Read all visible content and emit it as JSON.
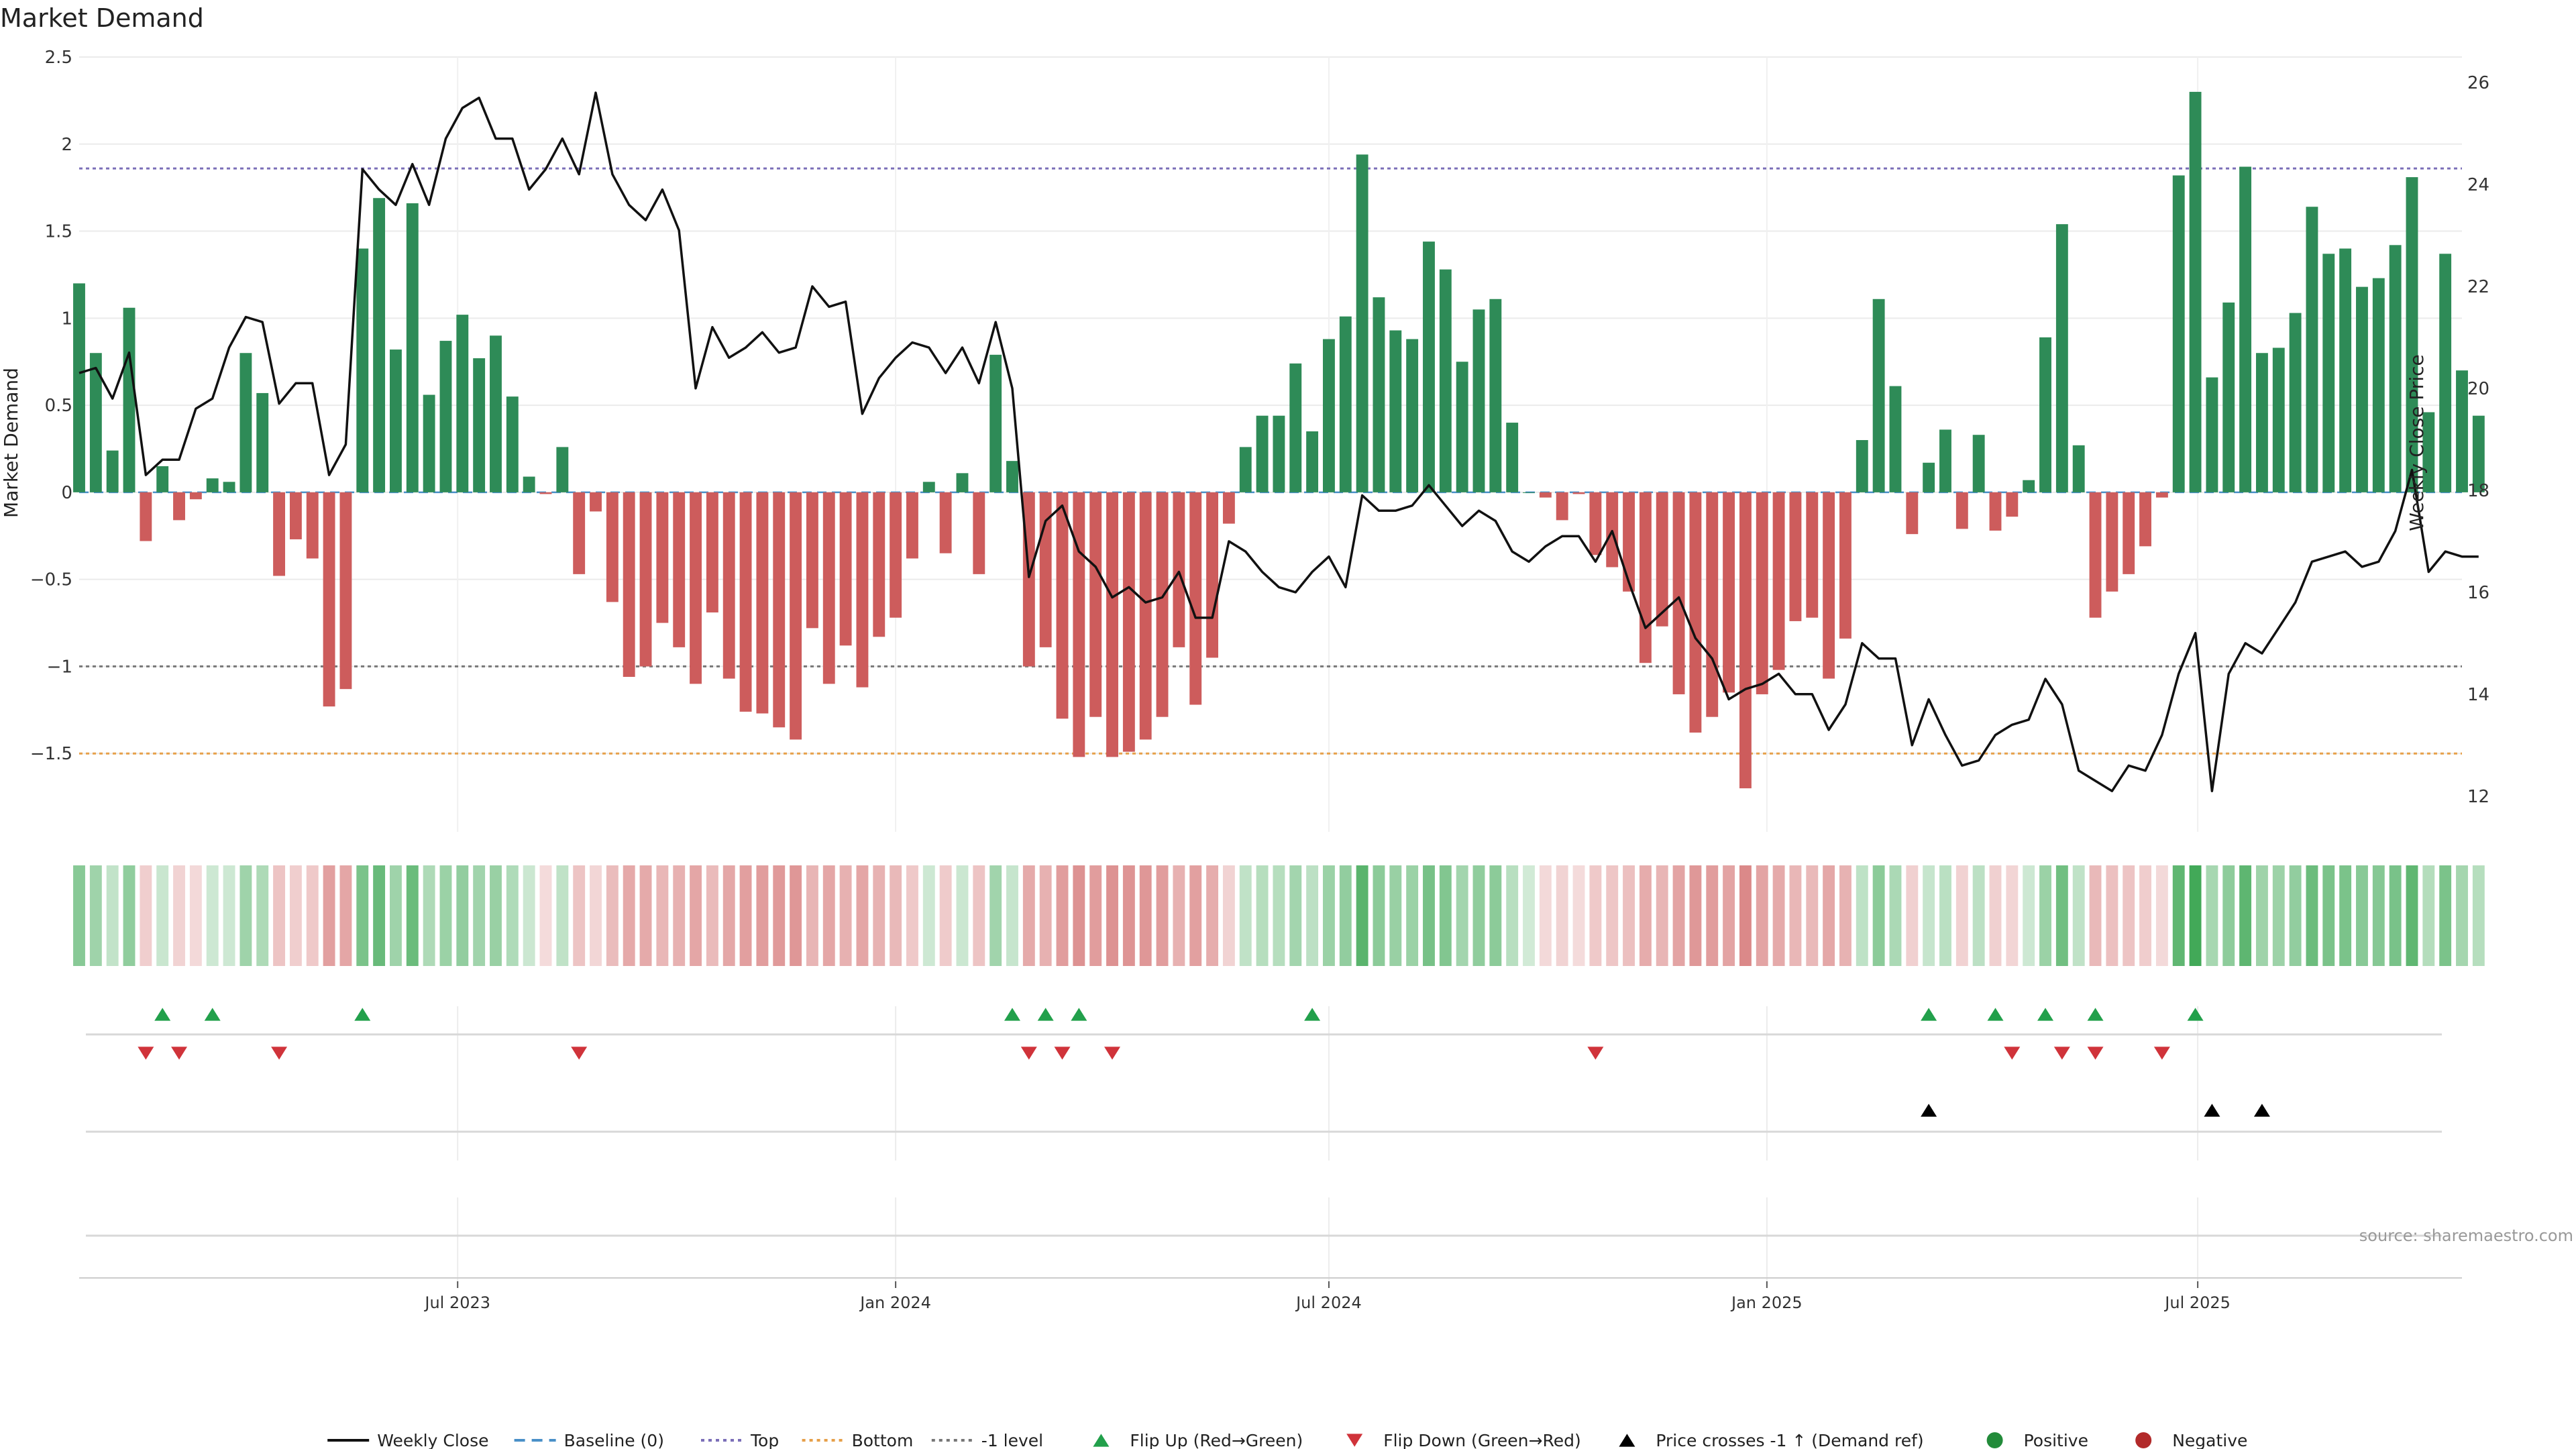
{
  "chart_data": {
    "type": "bar",
    "title": "Market Demand",
    "ylabel": "Market Demand",
    "y2label": "Weekly Close Price",
    "ylim": [
      -1.95,
      2.5
    ],
    "y2lim": [
      11.3,
      26.5
    ],
    "yticks": [
      2.5,
      2,
      1.5,
      1,
      0.5,
      0,
      -0.5,
      -1,
      -1.5
    ],
    "ytick_labels": [
      "2.5",
      "2",
      "1.5",
      "1",
      "0.5",
      "0",
      "−0.5",
      "−1",
      "−1.5"
    ],
    "y2ticks": [
      26,
      24,
      22,
      20,
      18,
      16,
      14,
      12
    ],
    "date_range": [
      "2023-01-23",
      "2025-10-20"
    ],
    "date_ticks": [
      {
        "date": "2023-07-01",
        "label": "Jul 2023"
      },
      {
        "date": "2024-01-01",
        "label": "Jan 2024"
      },
      {
        "date": "2024-07-01",
        "label": "Jul 2024"
      },
      {
        "date": "2025-01-01",
        "label": "Jan 2025"
      },
      {
        "date": "2025-07-01",
        "label": "Jul 2025"
      }
    ],
    "reference_lines": [
      {
        "name": "Top",
        "value": 1.86,
        "color": "#7b6fb8"
      },
      {
        "name": "Bottom",
        "value": -1.5,
        "color": "#e6a04a"
      },
      {
        "name": "-1 level",
        "value": -1.0,
        "color": "#777777"
      }
    ],
    "colors": {
      "positive": "#2e8b57",
      "negative": "#cd5c5c",
      "price": "#111111",
      "baseline": "#4a90c8",
      "flip_up": "#22a04b",
      "flip_down": "#d0333a",
      "cross": "#000000"
    },
    "weeks": {
      "start": "2023-01-23",
      "interval_days": 7,
      "demand": [
        1.2,
        0.8,
        0.24,
        1.06,
        -0.28,
        0.15,
        -0.16,
        -0.04,
        0.08,
        0.06,
        0.8,
        0.57,
        -0.48,
        -0.27,
        -0.38,
        -1.23,
        -1.13,
        1.4,
        1.69,
        0.82,
        1.66,
        0.56,
        0.87,
        1.02,
        0.77,
        0.9,
        0.55,
        0.09,
        -0.01,
        0.26,
        -0.47,
        -0.11,
        -0.63,
        -1.06,
        -1.0,
        -0.75,
        -0.89,
        -1.1,
        -0.69,
        -1.07,
        -1.26,
        -1.27,
        -1.35,
        -1.42,
        -0.78,
        -1.1,
        -0.88,
        -1.12,
        -0.83,
        -0.72,
        -0.38,
        0.06,
        -0.35,
        0.11,
        -0.47,
        0.79,
        0.18,
        -1.0,
        -0.89,
        -1.3,
        -1.52,
        -1.29,
        -1.52,
        -1.49,
        -1.42,
        -1.29,
        -0.89,
        -1.22,
        -0.95,
        -0.18,
        0.26,
        0.44,
        0.44,
        0.74,
        0.35,
        0.88,
        1.01,
        1.94,
        1.12,
        0.93,
        0.88,
        1.44,
        1.28,
        0.75,
        1.05,
        1.11,
        0.4,
        0.0,
        -0.03,
        -0.16,
        -0.01,
        -0.36,
        -0.43,
        -0.57,
        -0.98,
        -0.77,
        -1.16,
        -1.38,
        -1.29,
        -1.15,
        -1.7,
        -1.16,
        -1.02,
        -0.74,
        -0.72,
        -1.07,
        -0.84,
        0.3,
        1.11,
        0.61,
        -0.24,
        0.17,
        0.36,
        -0.21,
        0.33,
        -0.22,
        -0.14,
        0.07,
        0.89,
        1.54,
        0.27,
        -0.72,
        -0.57,
        -0.47,
        -0.31,
        -0.03,
        1.82,
        2.3,
        0.66,
        1.09,
        1.87,
        0.8,
        0.83,
        1.03,
        1.64,
        1.37,
        1.4,
        1.18,
        1.23,
        1.42,
        1.81,
        0.46,
        1.37,
        0.7,
        0.44
      ],
      "close": [
        20.3,
        20.4,
        19.8,
        20.7,
        18.3,
        18.6,
        18.6,
        19.6,
        19.8,
        20.8,
        21.4,
        21.3,
        19.7,
        20.1,
        20.1,
        18.3,
        18.9,
        24.3,
        23.9,
        23.6,
        24.4,
        23.6,
        24.9,
        25.5,
        25.7,
        24.9,
        24.9,
        23.9,
        24.3,
        24.9,
        24.2,
        25.8,
        24.2,
        23.6,
        23.3,
        23.9,
        23.1,
        20.0,
        21.2,
        20.6,
        20.8,
        21.1,
        20.7,
        20.8,
        22.0,
        21.6,
        21.7,
        19.5,
        20.2,
        20.6,
        20.9,
        20.8,
        20.3,
        20.8,
        20.1,
        21.3,
        20.0,
        16.3,
        17.4,
        17.7,
        16.8,
        16.5,
        15.9,
        16.1,
        15.8,
        15.9,
        16.4,
        15.5,
        15.5,
        17.0,
        16.8,
        16.4,
        16.1,
        16.0,
        16.4,
        16.7,
        16.1,
        17.9,
        17.6,
        17.6,
        17.7,
        18.1,
        17.7,
        17.3,
        17.6,
        17.4,
        16.8,
        16.6,
        16.9,
        17.1,
        17.1,
        16.6,
        17.2,
        16.2,
        15.3,
        15.6,
        15.9,
        15.1,
        14.7,
        13.9,
        14.1,
        14.2,
        14.4,
        14.0,
        14.0,
        13.3,
        13.8,
        15.0,
        14.7,
        14.7,
        13.0,
        13.9,
        13.2,
        12.6,
        12.7,
        13.2,
        13.4,
        13.5,
        14.3,
        13.8,
        12.5,
        12.3,
        12.1,
        12.6,
        12.5,
        13.2,
        14.4,
        15.2,
        12.1,
        14.4,
        15.0,
        14.8,
        15.3,
        15.8,
        16.6,
        16.7,
        16.8,
        16.5,
        16.6,
        17.2,
        18.4,
        16.4,
        16.8,
        16.7,
        16.7
      ]
    },
    "events": {
      "flip_up": [
        "2023-02-27",
        "2023-03-20",
        "2023-05-22",
        "2024-02-19",
        "2024-03-04",
        "2024-03-18",
        "2024-06-24",
        "2025-03-10",
        "2025-04-07",
        "2025-04-28",
        "2025-05-19",
        "2025-06-30"
      ],
      "flip_down": [
        "2023-02-20",
        "2023-03-06",
        "2023-04-17",
        "2023-08-21",
        "2024-02-26",
        "2024-03-11",
        "2024-04-01",
        "2024-10-21",
        "2025-04-14",
        "2025-05-05",
        "2025-05-19",
        "2025-06-16"
      ],
      "price_cross": [
        "2025-03-10",
        "2025-07-07",
        "2025-07-28"
      ]
    },
    "legend": {
      "placement": "bottom-center",
      "entries": [
        {
          "label": "Weekly Close",
          "symbol": "line",
          "color": "#111111"
        },
        {
          "label": "Baseline (0)",
          "symbol": "dash",
          "color": "#4a90c8"
        },
        {
          "label": "Top",
          "symbol": "dot",
          "color": "#7b6fb8"
        },
        {
          "label": "Bottom",
          "symbol": "dot",
          "color": "#e6a04a"
        },
        {
          "label": "-1 level",
          "symbol": "dot",
          "color": "#777777"
        },
        {
          "label": "Flip Up (Red→Green)",
          "symbol": "tri-up",
          "color": "#22a04b"
        },
        {
          "label": "Flip Down (Green→Red)",
          "symbol": "tri-down",
          "color": "#d0333a"
        },
        {
          "label": "Price crosses -1 ↑ (Demand ref)",
          "symbol": "tri-up",
          "color": "#000000"
        },
        {
          "label": "Positive",
          "symbol": "circle",
          "color": "#228b3a"
        },
        {
          "label": "Negative",
          "symbol": "circle",
          "color": "#b22a2a"
        }
      ]
    },
    "source": "source: sharemaestro.com"
  }
}
